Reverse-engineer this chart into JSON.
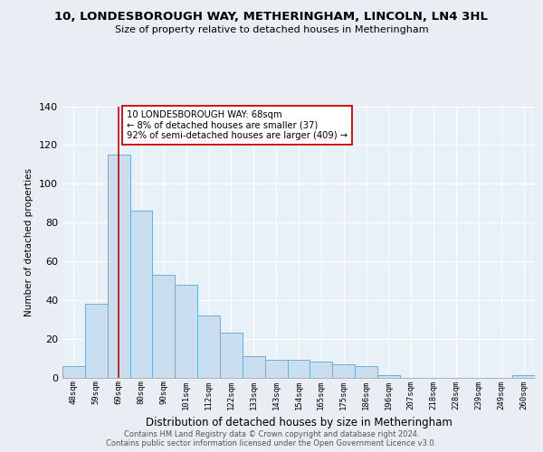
{
  "title": "10, LONDESBOROUGH WAY, METHERINGHAM, LINCOLN, LN4 3HL",
  "subtitle": "Size of property relative to detached houses in Metheringham",
  "xlabel": "Distribution of detached houses by size in Metheringham",
  "ylabel": "Number of detached properties",
  "categories": [
    "48sqm",
    "59sqm",
    "69sqm",
    "80sqm",
    "90sqm",
    "101sqm",
    "112sqm",
    "122sqm",
    "133sqm",
    "143sqm",
    "154sqm",
    "165sqm",
    "175sqm",
    "186sqm",
    "196sqm",
    "207sqm",
    "218sqm",
    "228sqm",
    "239sqm",
    "249sqm",
    "260sqm"
  ],
  "values": [
    6,
    38,
    115,
    86,
    53,
    48,
    32,
    23,
    11,
    9,
    9,
    8,
    7,
    6,
    1,
    0,
    0,
    0,
    0,
    0,
    1
  ],
  "bar_facecolor": "#c9dff0",
  "bar_edgecolor": "#6bafd6",
  "highlight_line_color": "#cc0000",
  "highlight_line_index": 2,
  "annotation_text": "10 LONDESBOROUGH WAY: 68sqm\n← 8% of detached houses are smaller (37)\n92% of semi-detached houses are larger (409) →",
  "annotation_box_facecolor": "#ffffff",
  "annotation_box_edgecolor": "#cc0000",
  "ylim": [
    0,
    140
  ],
  "yticks": [
    0,
    20,
    40,
    60,
    80,
    100,
    120,
    140
  ],
  "grid_color": "#d0dce8",
  "background_color": "#e8eef4",
  "plot_bg_color": "#e8f0f8",
  "footer_text": "Contains HM Land Registry data © Crown copyright and database right 2024.\nContains public sector information licensed under the Open Government Licence v3.0."
}
